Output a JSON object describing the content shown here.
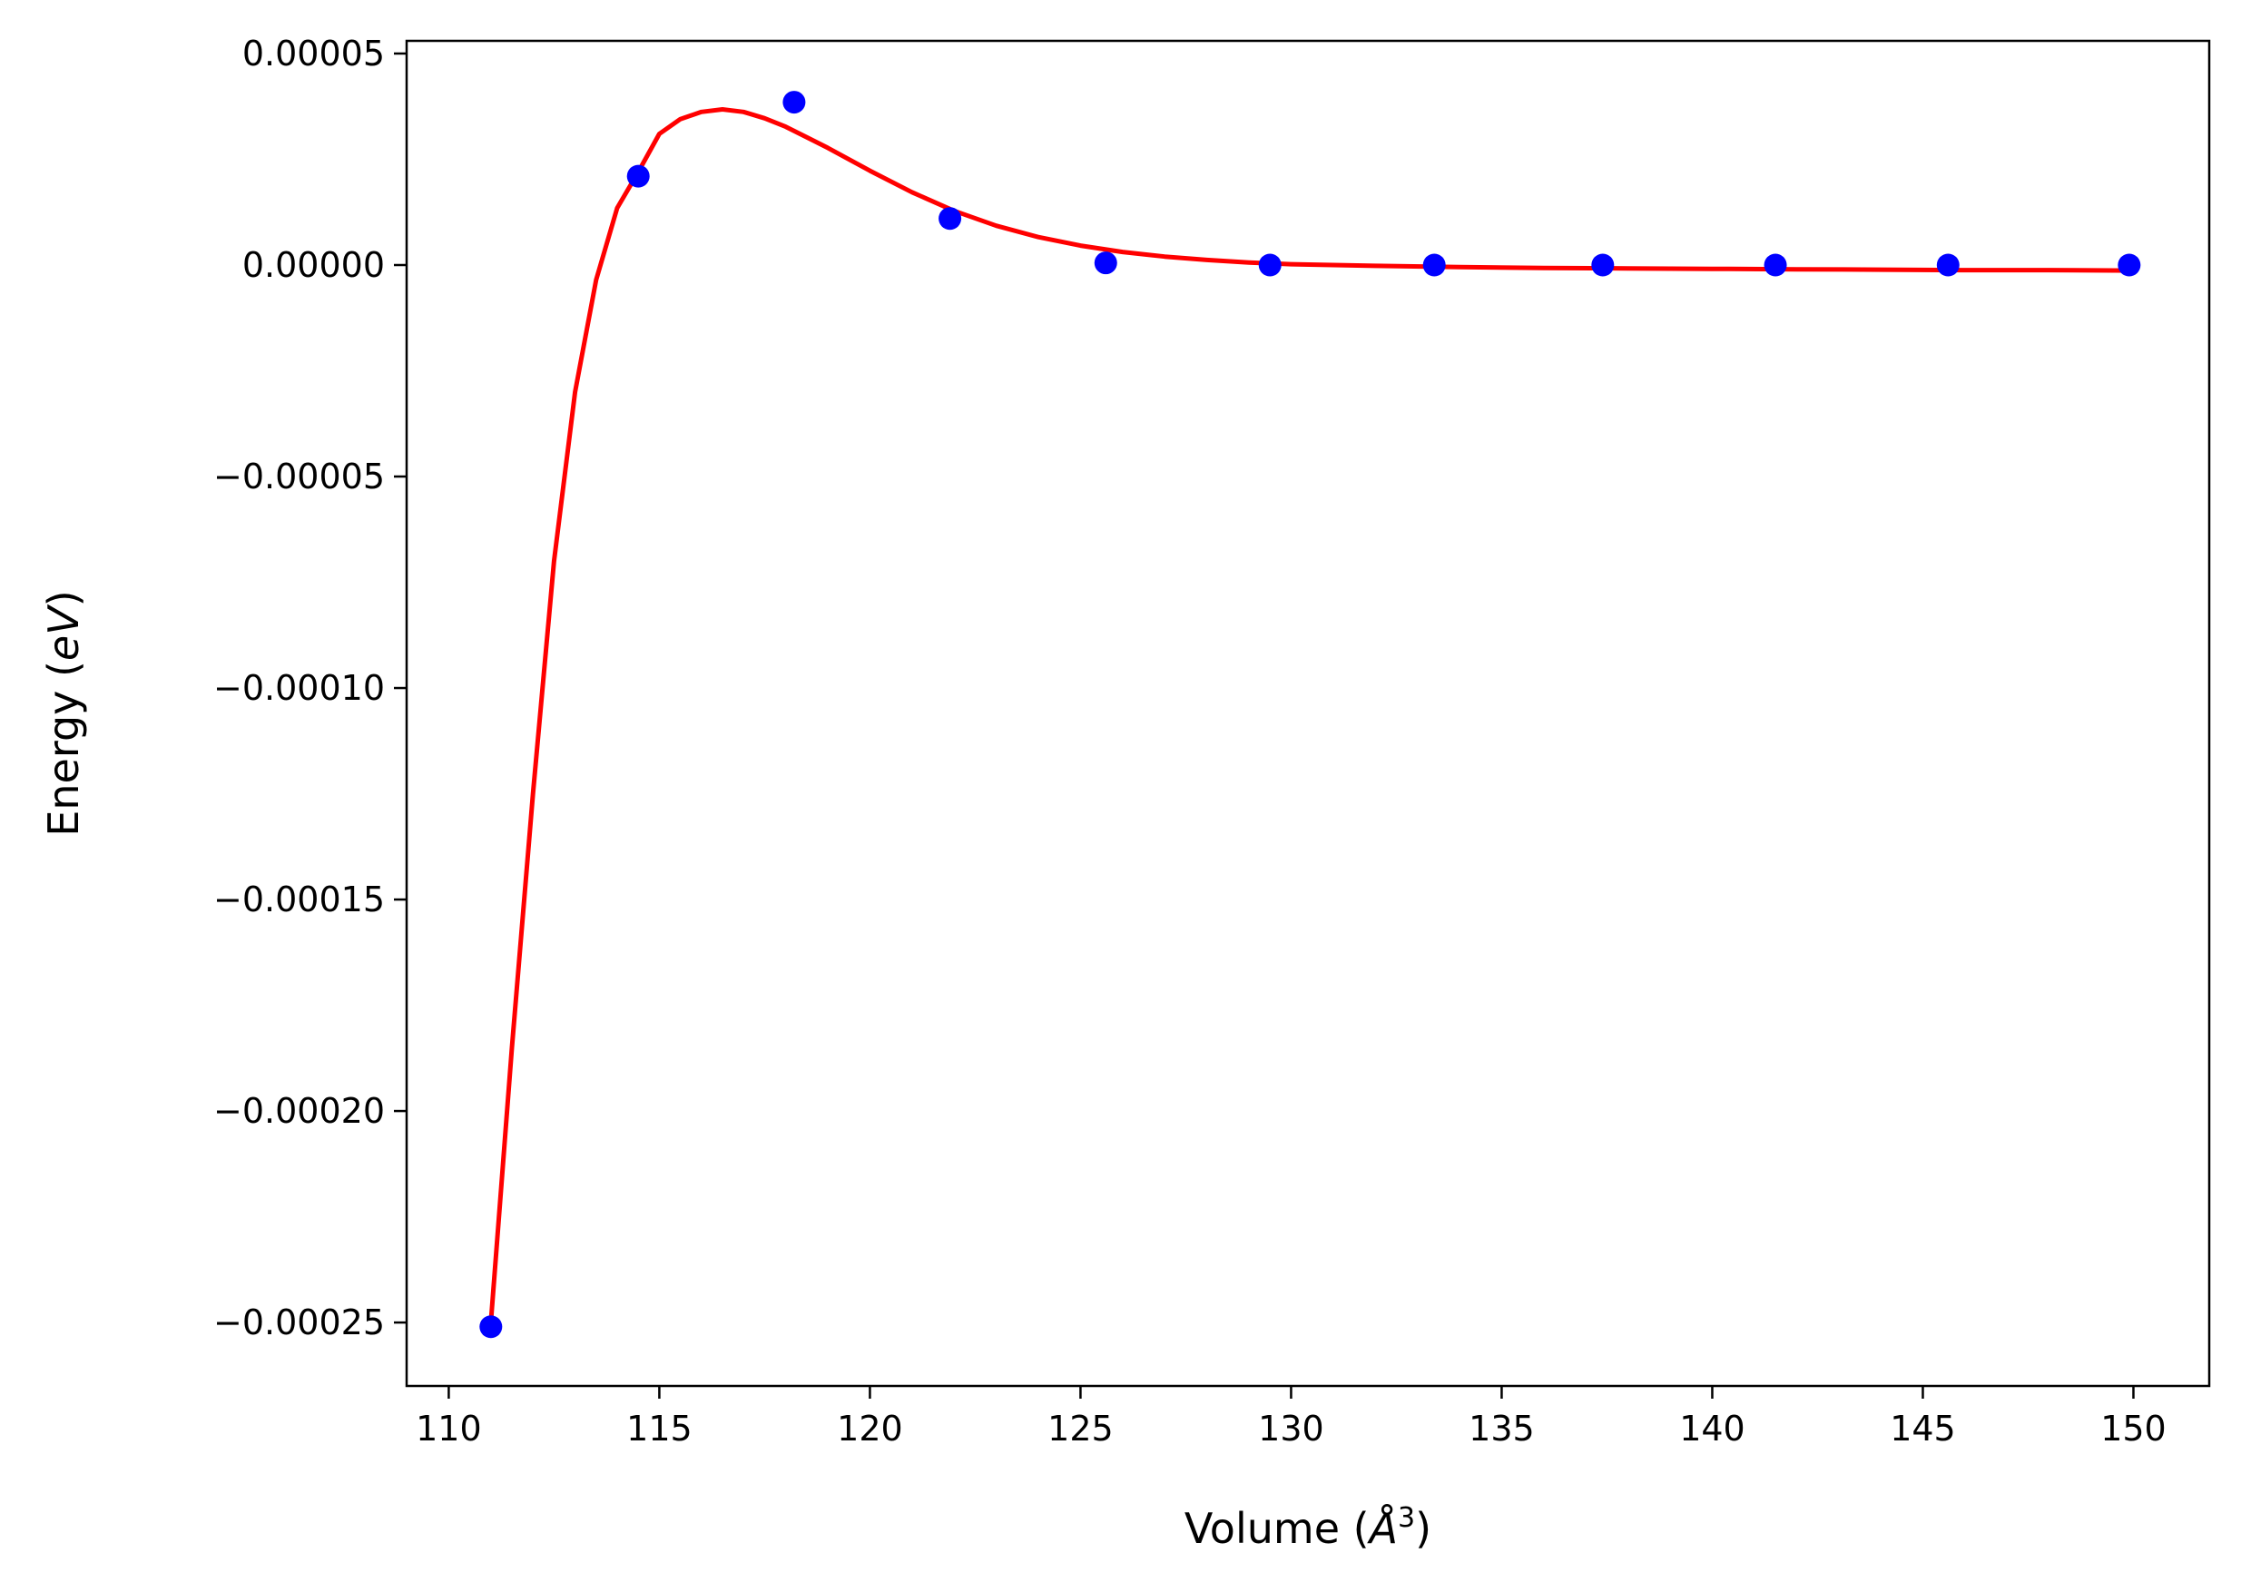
{
  "chart_data": {
    "type": "scatter",
    "title": "",
    "xlabel": "Volume (",
    "xlabel_unit": "Å",
    "xlabel_sup": "3",
    "xlabel_close": ")",
    "ylabel": "Energy (",
    "ylabel_unit": "eV",
    "ylabel_close": ")",
    "xlim": [
      109.0,
      151.8
    ],
    "ylim": [
      -0.000265,
      5.3e-05
    ],
    "xticks": [
      110,
      115,
      120,
      125,
      130,
      135,
      140,
      145,
      150
    ],
    "xtick_labels": [
      "110",
      "115",
      "120",
      "125",
      "130",
      "135",
      "140",
      "145",
      "150"
    ],
    "yticks": [
      5e-05,
      0.0,
      -5e-05,
      -0.0001,
      -0.00015,
      -0.0002,
      -0.00025
    ],
    "ytick_labels": [
      "0.00005",
      "0.00000",
      "−0.00005",
      "−0.00010",
      "−0.00015",
      "−0.00020",
      "−0.00025"
    ],
    "grid": false,
    "series": [
      {
        "kind": "points",
        "color": "#0000ff",
        "x": [
          111.0,
          114.5,
          118.2,
          121.9,
          125.6,
          129.5,
          133.4,
          137.4,
          141.5,
          145.6,
          149.9
        ],
        "y": [
          -0.000251,
          2.1e-05,
          3.85e-05,
          1.1e-05,
          5e-07,
          0.0,
          0.0,
          0.0,
          0.0,
          0.0,
          0.0
        ]
      },
      {
        "kind": "line",
        "color": "#ff0000",
        "x": [
          111.0,
          111.5,
          112.0,
          112.5,
          113.0,
          113.5,
          114.0,
          114.5,
          115.0,
          115.5,
          116.0,
          116.5,
          117.0,
          117.5,
          118.0,
          119.0,
          120.0,
          121.0,
          122.0,
          123.0,
          124.0,
          125.0,
          126.0,
          127.0,
          128.0,
          129.0,
          130.0,
          132.0,
          134.0,
          136.0,
          138.0,
          140.0,
          142.0,
          144.0,
          146.0,
          148.0,
          150.0
        ],
        "y": [
          -0.00025,
          -0.000185,
          -0.000125,
          -7e-05,
          -3e-05,
          -3.5e-06,
          1.35e-05,
          2.2e-05,
          3.1e-05,
          3.45e-05,
          3.62e-05,
          3.68e-05,
          3.62e-05,
          3.47e-05,
          3.27e-05,
          2.77e-05,
          2.23e-05,
          1.72e-05,
          1.28e-05,
          9.3e-06,
          6.6e-06,
          4.6e-06,
          3.1e-06,
          2e-06,
          1.2e-06,
          6e-07,
          2e-07,
          -2e-07,
          -5e-07,
          -7e-07,
          -8e-07,
          -9e-07,
          -1e-06,
          -1.1e-06,
          -1.2e-06,
          -1.2e-06,
          -1.3e-06
        ]
      }
    ]
  }
}
